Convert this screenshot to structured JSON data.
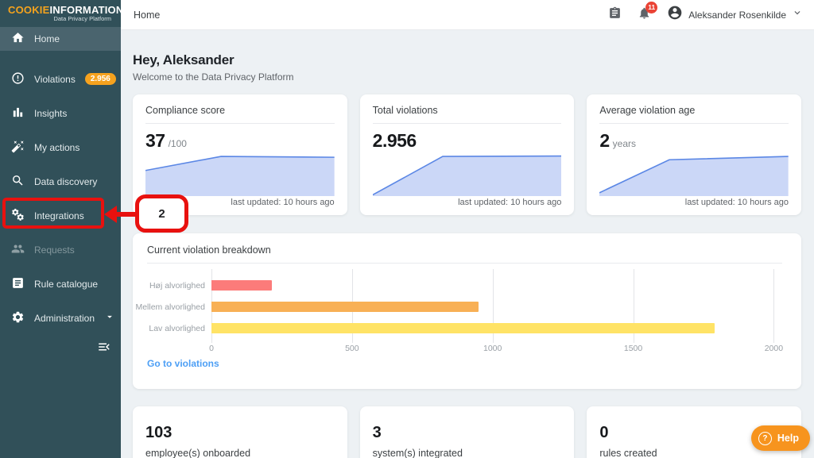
{
  "brand": {
    "part1": "COOKIE",
    "part2": "INFORMATION",
    "tagline": "Data Privacy Platform"
  },
  "header": {
    "breadcrumb": "Home",
    "notification_count": "11",
    "user_name": "Aleksander Rosenkilde"
  },
  "sidebar": {
    "items": [
      {
        "label": "Home",
        "state": "selected"
      },
      {
        "label": "Violations",
        "badge": "2.956"
      },
      {
        "label": "Insights"
      },
      {
        "label": "My actions"
      },
      {
        "label": "Data discovery"
      },
      {
        "label": "Integrations",
        "annotated": true
      },
      {
        "label": "Requests",
        "state": "disabled"
      },
      {
        "label": "Rule catalogue"
      },
      {
        "label": "Administration",
        "expandable": true
      }
    ]
  },
  "greeting": {
    "title": "Hey, Aleksander",
    "subtitle": "Welcome to the Data Privacy Platform"
  },
  "stat_cards": [
    {
      "title": "Compliance score",
      "value": "37",
      "suffix": "/100",
      "footer": "last updated: 10 hours ago"
    },
    {
      "title": "Total violations",
      "value": "2.956",
      "suffix": "",
      "footer": "last updated: 10 hours ago"
    },
    {
      "title": "Average violation age",
      "value": "2",
      "suffix": "years",
      "footer": "last updated: 10 hours ago"
    }
  ],
  "chart_data": [
    {
      "type": "bar",
      "orientation": "horizontal",
      "title": "Current violation breakdown",
      "categories": [
        "Høj alvorlighed",
        "Mellem alvorlighed",
        "Lav alvorlighed"
      ],
      "values": [
        216,
        950,
        1790
      ],
      "bar_colors": [
        "#FC7B7A",
        "#F8B055",
        "#FFE366"
      ],
      "xticks": [
        0,
        500,
        1000,
        1500,
        2000
      ],
      "xlim": [
        0,
        2030
      ],
      "grid": true,
      "legend": false,
      "link_label": "Go to violations"
    },
    {
      "type": "area",
      "title": "Compliance score trend",
      "points": [
        [
          0,
          0.62
        ],
        [
          0.4,
          0.96
        ],
        [
          1,
          0.94
        ]
      ],
      "line_color": "#5B87E5",
      "fill_color": "#CBD7F7",
      "axes": "hidden"
    },
    {
      "type": "area",
      "title": "Total violations trend",
      "points": [
        [
          0,
          0.03
        ],
        [
          0.37,
          0.96
        ],
        [
          1,
          0.97
        ]
      ],
      "line_color": "#5B87E5",
      "fill_color": "#CBD7F7",
      "axes": "hidden"
    },
    {
      "type": "area",
      "title": "Average violation age trend",
      "points": [
        [
          0,
          0.08
        ],
        [
          0.37,
          0.88
        ],
        [
          1,
          0.96
        ]
      ],
      "line_color": "#5B87E5",
      "fill_color": "#CBD7F7",
      "axes": "hidden"
    }
  ],
  "summary_cards": [
    {
      "value": "103",
      "label": "employee(s) onboarded"
    },
    {
      "value": "3",
      "label": "system(s) integrated"
    },
    {
      "value": "0",
      "label": "rules created"
    }
  ],
  "help": {
    "label": "Help"
  },
  "annotation": {
    "step": "2"
  },
  "colors": {
    "sidebar_bg": "#315059",
    "sidebar_selected_bg": "#4A646E",
    "badge_orange": "#F6A21E",
    "help_orange": "#F7941E",
    "annotation_red": "#E8110F",
    "notification_red": "#EA4335",
    "link_blue": "#4D9FF5",
    "spark_line": "#5B87E5",
    "spark_fill": "#CBD7F7",
    "main_bg": "#EDF1F4"
  }
}
